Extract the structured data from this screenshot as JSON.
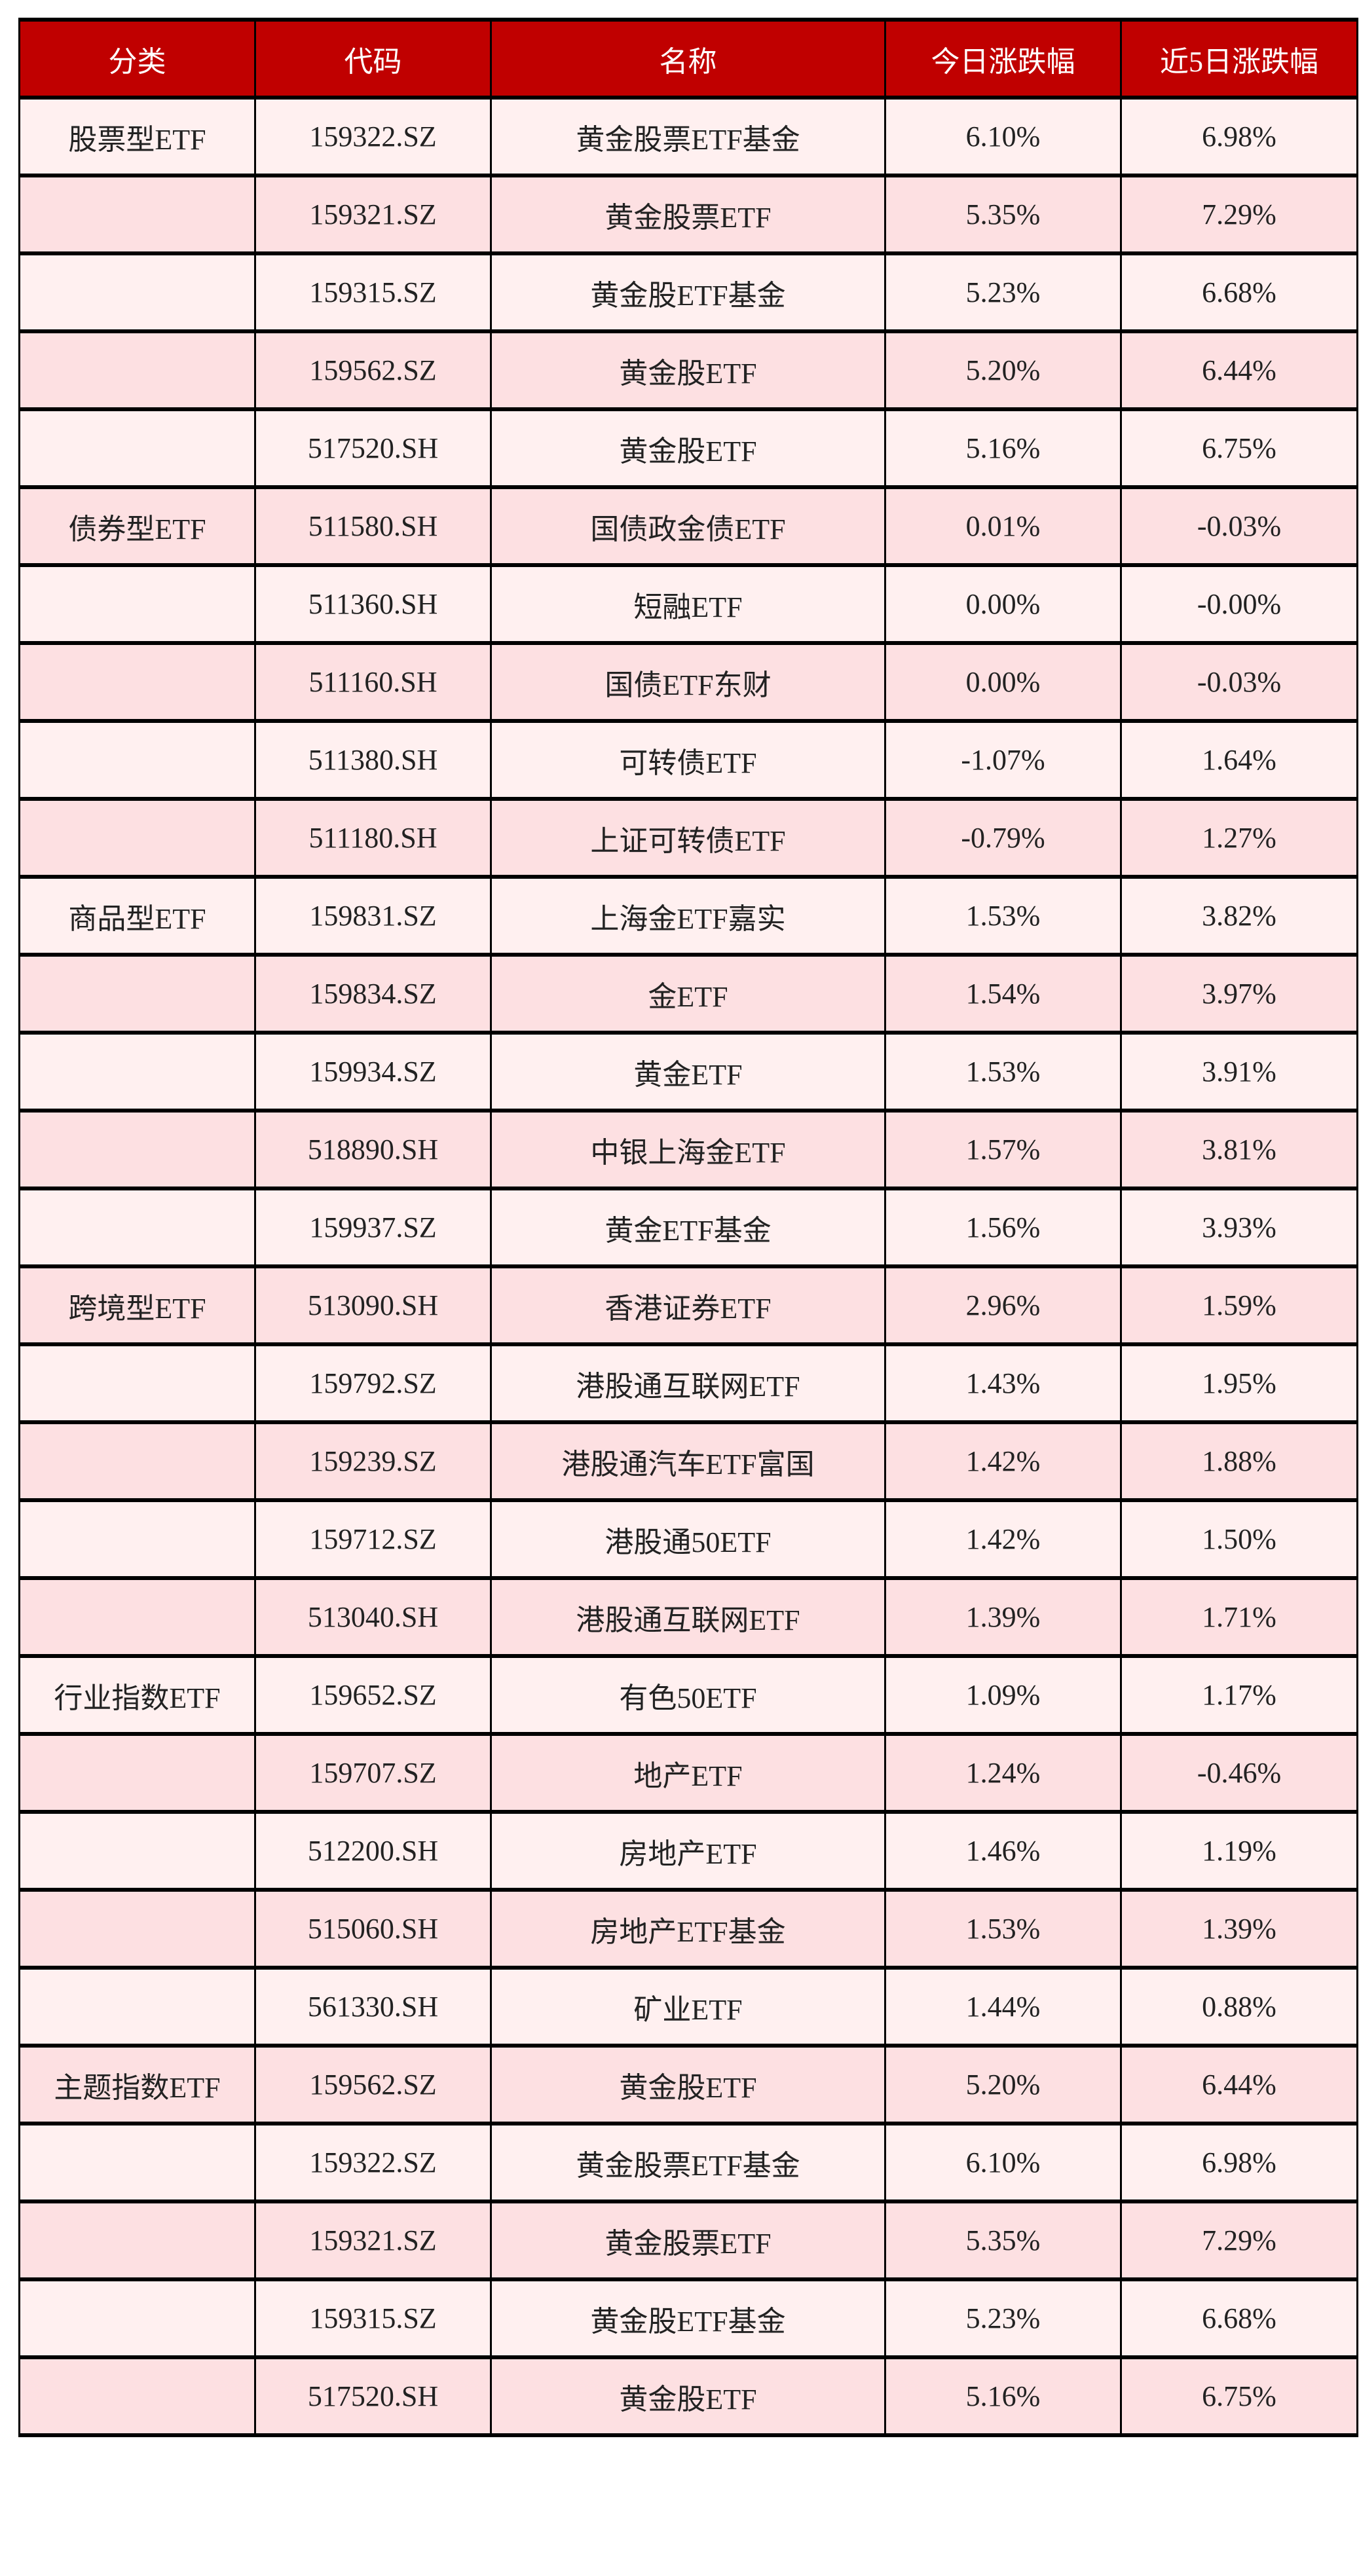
{
  "colors": {
    "header_bg": "#C00000",
    "row_light": "#FFF0F0",
    "row_dark": "#FDE0E2",
    "border": "#000000"
  },
  "headers": [
    "分类",
    "代码",
    "名称",
    "今日涨跌幅",
    "近5日涨跌幅"
  ],
  "rows": [
    [
      "股票型ETF",
      "159322.SZ",
      "黄金股票ETF基金",
      "6.10%",
      "6.98%"
    ],
    [
      "",
      "159321.SZ",
      "黄金股票ETF",
      "5.35%",
      "7.29%"
    ],
    [
      "",
      "159315.SZ",
      "黄金股ETF基金",
      "5.23%",
      "6.68%"
    ],
    [
      "",
      "159562.SZ",
      "黄金股ETF",
      "5.20%",
      "6.44%"
    ],
    [
      "",
      "517520.SH",
      "黄金股ETF",
      "5.16%",
      "6.75%"
    ],
    [
      "债券型ETF",
      "511580.SH",
      "国债政金债ETF",
      "0.01%",
      "-0.03%"
    ],
    [
      "",
      "511360.SH",
      "短融ETF",
      "0.00%",
      "-0.00%"
    ],
    [
      "",
      "511160.SH",
      "国债ETF东财",
      "0.00%",
      "-0.03%"
    ],
    [
      "",
      "511380.SH",
      "可转债ETF",
      "-1.07%",
      "1.64%"
    ],
    [
      "",
      "511180.SH",
      "上证可转债ETF",
      "-0.79%",
      "1.27%"
    ],
    [
      "商品型ETF",
      "159831.SZ",
      "上海金ETF嘉实",
      "1.53%",
      "3.82%"
    ],
    [
      "",
      "159834.SZ",
      "金ETF",
      "1.54%",
      "3.97%"
    ],
    [
      "",
      "159934.SZ",
      "黄金ETF",
      "1.53%",
      "3.91%"
    ],
    [
      "",
      "518890.SH",
      "中银上海金ETF",
      "1.57%",
      "3.81%"
    ],
    [
      "",
      "159937.SZ",
      "黄金ETF基金",
      "1.56%",
      "3.93%"
    ],
    [
      "跨境型ETF",
      "513090.SH",
      "香港证券ETF",
      "2.96%",
      "1.59%"
    ],
    [
      "",
      "159792.SZ",
      "港股通互联网ETF",
      "1.43%",
      "1.95%"
    ],
    [
      "",
      "159239.SZ",
      "港股通汽车ETF富国",
      "1.42%",
      "1.88%"
    ],
    [
      "",
      "159712.SZ",
      "港股通50ETF",
      "1.42%",
      "1.50%"
    ],
    [
      "",
      "513040.SH",
      "港股通互联网ETF",
      "1.39%",
      "1.71%"
    ],
    [
      "行业指数ETF",
      "159652.SZ",
      "有色50ETF",
      "1.09%",
      "1.17%"
    ],
    [
      "",
      "159707.SZ",
      "地产ETF",
      "1.24%",
      "-0.46%"
    ],
    [
      "",
      "512200.SH",
      "房地产ETF",
      "1.46%",
      "1.19%"
    ],
    [
      "",
      "515060.SH",
      "房地产ETF基金",
      "1.53%",
      "1.39%"
    ],
    [
      "",
      "561330.SH",
      "矿业ETF",
      "1.44%",
      "0.88%"
    ],
    [
      "主题指数ETF",
      "159562.SZ",
      "黄金股ETF",
      "5.20%",
      "6.44%"
    ],
    [
      "",
      "159322.SZ",
      "黄金股票ETF基金",
      "6.10%",
      "6.98%"
    ],
    [
      "",
      "159321.SZ",
      "黄金股票ETF",
      "5.35%",
      "7.29%"
    ],
    [
      "",
      "159315.SZ",
      "黄金股ETF基金",
      "5.23%",
      "6.68%"
    ],
    [
      "",
      "517520.SH",
      "黄金股ETF",
      "5.16%",
      "6.75%"
    ]
  ]
}
